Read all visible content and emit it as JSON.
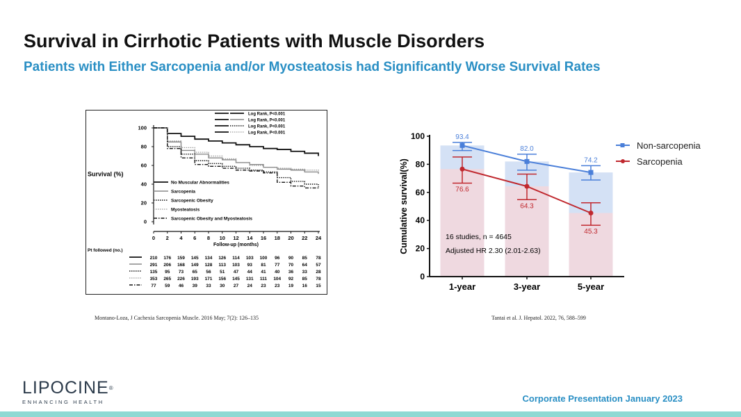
{
  "slide": {
    "title": "Survival in Cirrhotic Patients with Muscle Disorders",
    "subtitle": "Patients with Either Sarcopenia and/or Myosteatosis had Significantly Worse Survival Rates",
    "footer": "Corporate Presentation January 2023",
    "logo": {
      "name": "LIPOCINE",
      "mark": "®",
      "tagline": "ENHANCING HEALTH"
    },
    "colors": {
      "accent": "#2a8fc4",
      "footer_band": "#8fd9d3",
      "logo": "#2b3a4a"
    }
  },
  "chart_data": [
    {
      "type": "line",
      "id": "km",
      "ylabel": "Survival (%)",
      "xlabel": "Follow-up (months)",
      "ylim": [
        0,
        100
      ],
      "xlim": [
        0,
        24
      ],
      "y_ticks": [
        0,
        20,
        40,
        60,
        80,
        100
      ],
      "x_ticks": [
        0,
        2,
        4,
        6,
        8,
        10,
        12,
        14,
        16,
        18,
        20,
        22,
        24
      ],
      "log_rank": [
        "Log Rank, P<0.001",
        "Log Rank, P<0.001",
        "Log Rank, P<0.001",
        "Log Rank, P<0.001"
      ],
      "series": [
        {
          "name": "No Muscular Abnormalities",
          "style": "solid-thick",
          "x": [
            0,
            2,
            4,
            6,
            8,
            10,
            12,
            14,
            16,
            18,
            20,
            22,
            24
          ],
          "y": [
            100,
            94,
            91,
            88,
            86,
            84,
            82,
            80,
            78,
            77,
            75,
            73,
            70
          ]
        },
        {
          "name": "Sarcopenia",
          "style": "solid-gray",
          "x": [
            0,
            2,
            4,
            6,
            8,
            10,
            12,
            14,
            16,
            18,
            20,
            22,
            24
          ],
          "y": [
            100,
            85,
            76,
            72,
            68,
            66,
            63,
            61,
            58,
            56,
            55,
            53,
            51
          ]
        },
        {
          "name": "Sarcopenic Obesity",
          "style": "dotted",
          "x": [
            0,
            2,
            4,
            6,
            8,
            10,
            12,
            14,
            16,
            18,
            20,
            22,
            24
          ],
          "y": [
            100,
            80,
            72,
            65,
            62,
            59,
            57,
            55,
            53,
            47,
            43,
            40,
            37
          ]
        },
        {
          "name": "Myosteatosis",
          "style": "dotted-gray",
          "x": [
            0,
            2,
            4,
            6,
            8,
            10,
            12,
            14,
            16,
            18,
            20,
            22,
            24
          ],
          "y": [
            100,
            86,
            79,
            74,
            70,
            67,
            63,
            60,
            58,
            57,
            56,
            55,
            54
          ]
        },
        {
          "name": "Sarcopenic Obesity and Myosteatosis",
          "style": "dash-dot",
          "x": [
            0,
            2,
            4,
            6,
            8,
            10,
            12,
            14,
            16,
            18,
            20,
            22,
            24
          ],
          "y": [
            100,
            78,
            68,
            61,
            59,
            57,
            55,
            54,
            52,
            42,
            38,
            36,
            35
          ]
        }
      ],
      "at_risk": {
        "label": "Pt followed (no.)",
        "rows": [
          {
            "style": "solid-thick",
            "values": [
              210,
              176,
              159,
              145,
              134,
              126,
              114,
              103,
              100,
              96,
              90,
              85,
              78
            ]
          },
          {
            "style": "solid-gray",
            "values": [
              291,
              206,
              168,
              149,
              128,
              113,
              103,
              93,
              81,
              77,
              70,
              64,
              57
            ]
          },
          {
            "style": "dotted",
            "values": [
              135,
              95,
              73,
              65,
              56,
              51,
              47,
              44,
              41,
              40,
              36,
              33,
              28
            ]
          },
          {
            "style": "dotted-gray",
            "values": [
              353,
              265,
              226,
              193,
              171,
              156,
              145,
              131,
              111,
              104,
              92,
              85,
              78
            ]
          },
          {
            "style": "dash-dot",
            "values": [
              77,
              59,
              46,
              39,
              33,
              30,
              27,
              24,
              23,
              23,
              19,
              16,
              15
            ]
          }
        ]
      },
      "citation": "Montano-Loza, J Cachexia Sarcopenia Muscle. 2016 May; 7(2): 126–135"
    },
    {
      "type": "bar",
      "id": "meta",
      "ylabel": "Cumulative survival(%)",
      "ylim": [
        0,
        100
      ],
      "y_ticks": [
        0,
        20,
        40,
        60,
        80,
        100
      ],
      "categories": [
        "1-year",
        "3-year",
        "5-year"
      ],
      "series": [
        {
          "name": "Non-sarcopenia",
          "color": "#4a7fd9",
          "bar_color": "#c5d7f2",
          "values": [
            93.4,
            82.0,
            74.2
          ],
          "ci_low": [
            89.8,
            75.8,
            68.8
          ],
          "ci_high": [
            95.6,
            87.2,
            79.0
          ]
        },
        {
          "name": "Sarcopenia",
          "color": "#c0282e",
          "bar_color": "#f8d5d8",
          "values": [
            76.6,
            64.3,
            45.3
          ],
          "ci_low": [
            66.6,
            54.8,
            36.6
          ],
          "ci_high": [
            85.2,
            73.0,
            52.6
          ]
        }
      ],
      "value_labels": [
        "93.4",
        "82.0",
        "74.2",
        "76.6",
        "64.3",
        "45.3"
      ],
      "annotations": [
        "16 studies, n = 4645",
        "Adjusted HR 2.30 (2.01-2.63)"
      ],
      "citation": "Tantai et al. J. Hepatol. 2022, 76, 588–599"
    }
  ]
}
